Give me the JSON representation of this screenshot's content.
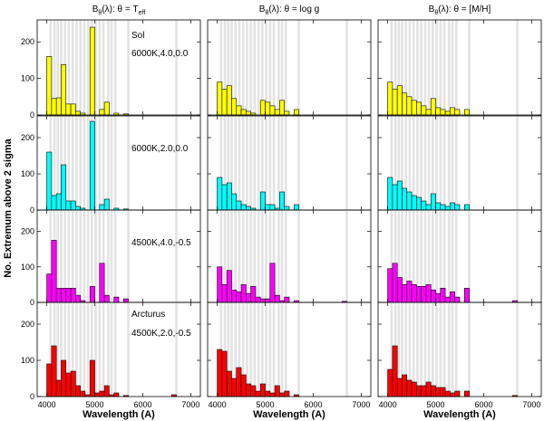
{
  "chart_data": {
    "type": "bar",
    "ylabel": "No. Extremum above 2 sigma",
    "xlabel": "Wavelength (A)",
    "xlim": [
      3800,
      7200
    ],
    "ylim": [
      0,
      260
    ],
    "xticks": [
      4000,
      5000,
      6000,
      7000
    ],
    "yticks": [
      0,
      100,
      200
    ],
    "bin_width": 100,
    "bin_starts": [
      4000,
      4100,
      4200,
      4300,
      4400,
      4500,
      4600,
      4700,
      4800,
      4900,
      5000,
      5100,
      5200,
      5300,
      5400,
      5500,
      5600,
      5700,
      5800,
      5900,
      6000,
      6100,
      6200,
      6300,
      6400,
      6500,
      6600,
      6700
    ],
    "columns": [
      {
        "title_main": "B",
        "title_sub1": "θ",
        "title_rest": "(λ): θ = T",
        "title_sub2": "eff"
      },
      {
        "title_main": "B",
        "title_sub1": "θ",
        "title_rest": "(λ): θ = log g",
        "title_sub2": ""
      },
      {
        "title_main": "B",
        "title_sub1": "θ",
        "title_rest": "(λ): θ = [M/H]",
        "title_sub2": ""
      }
    ],
    "rows": [
      {
        "name": "Sol",
        "params": "6000K,4.0,0.0",
        "color": "#ffff00"
      },
      {
        "name": "",
        "params": "6000K,2.0,0.0",
        "color": "#00ffff"
      },
      {
        "name": "",
        "params": "4500K,4.0,-0.5",
        "color": "#ff00ff"
      },
      {
        "name": "Arcturus",
        "params": "4500K,2.0,-0.5",
        "color": "#ff0000"
      }
    ],
    "gray_bands": [
      4080,
      4160,
      4230,
      4300,
      4380,
      4460,
      4540,
      4620,
      4700,
      4780,
      4860,
      4940,
      5020,
      5100,
      5180,
      5280,
      5350,
      5430,
      5700,
      6700
    ],
    "series": [
      [
        [
          160,
          45,
          47,
          138,
          30,
          30,
          10,
          5,
          0,
          240,
          0,
          15,
          35,
          0,
          5,
          0,
          3,
          0,
          0,
          0,
          0,
          0,
          0,
          0,
          0,
          0,
          0,
          0
        ],
        [
          90,
          70,
          80,
          45,
          25,
          15,
          10,
          5,
          0,
          40,
          35,
          25,
          15,
          40,
          10,
          0,
          15,
          0,
          0,
          0,
          0,
          0,
          0,
          0,
          0,
          0,
          0,
          0
        ],
        [
          90,
          70,
          80,
          60,
          50,
          40,
          35,
          25,
          15,
          45,
          20,
          15,
          10,
          20,
          15,
          0,
          15,
          0,
          0,
          0,
          0,
          0,
          0,
          0,
          0,
          0,
          0,
          0
        ]
      ],
      [
        [
          160,
          40,
          45,
          125,
          25,
          25,
          10,
          5,
          0,
          245,
          0,
          15,
          30,
          0,
          5,
          0,
          3,
          0,
          0,
          0,
          0,
          0,
          0,
          0,
          0,
          0,
          0,
          0
        ],
        [
          90,
          70,
          75,
          45,
          25,
          15,
          10,
          5,
          0,
          50,
          15,
          15,
          5,
          50,
          10,
          0,
          15,
          0,
          0,
          0,
          0,
          0,
          0,
          0,
          0,
          0,
          0,
          0
        ],
        [
          90,
          70,
          80,
          60,
          50,
          40,
          35,
          25,
          15,
          45,
          20,
          15,
          10,
          20,
          15,
          0,
          15,
          0,
          0,
          0,
          0,
          0,
          0,
          0,
          0,
          0,
          0,
          0
        ]
      ],
      [
        [
          80,
          175,
          40,
          40,
          40,
          40,
          20,
          5,
          0,
          45,
          0,
          110,
          20,
          0,
          15,
          0,
          10,
          0,
          0,
          0,
          0,
          0,
          0,
          0,
          0,
          0,
          0,
          0
        ],
        [
          100,
          50,
          90,
          35,
          30,
          50,
          25,
          45,
          15,
          10,
          10,
          110,
          20,
          5,
          15,
          0,
          5,
          0,
          0,
          0,
          0,
          0,
          0,
          0,
          0,
          0,
          3,
          0
        ],
        [
          95,
          110,
          70,
          50,
          60,
          50,
          45,
          45,
          50,
          35,
          25,
          40,
          15,
          30,
          15,
          0,
          40,
          0,
          0,
          0,
          0,
          0,
          0,
          0,
          0,
          0,
          5,
          0
        ]
      ],
      [
        [
          90,
          140,
          45,
          100,
          65,
          70,
          30,
          15,
          5,
          100,
          10,
          15,
          30,
          5,
          10,
          0,
          3,
          0,
          0,
          0,
          0,
          0,
          0,
          0,
          0,
          0,
          5,
          0
        ],
        [
          130,
          125,
          70,
          50,
          80,
          60,
          35,
          30,
          15,
          35,
          15,
          10,
          30,
          10,
          15,
          0,
          5,
          0,
          0,
          0,
          0,
          0,
          0,
          0,
          0,
          0,
          0,
          0
        ],
        [
          75,
          140,
          50,
          60,
          45,
          40,
          30,
          30,
          40,
          30,
          25,
          25,
          15,
          10,
          15,
          0,
          15,
          0,
          0,
          0,
          0,
          0,
          0,
          0,
          0,
          0,
          3,
          0
        ]
      ]
    ]
  }
}
